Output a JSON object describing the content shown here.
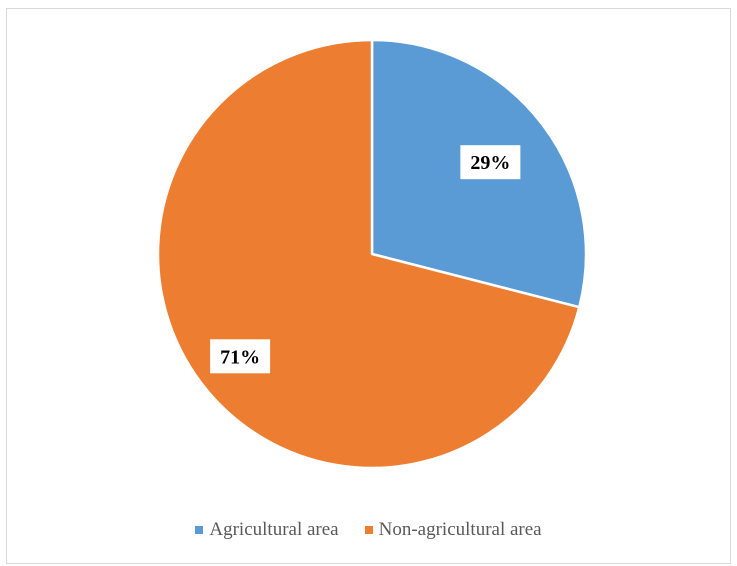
{
  "chart_data": {
    "type": "pie",
    "title": "",
    "categories": [
      "Agricultural area",
      "Non-agricultural area"
    ],
    "values": [
      29,
      71
    ],
    "data_labels": [
      "29%",
      "71%"
    ],
    "colors": [
      "#5b9bd5",
      "#ed7d31"
    ],
    "start_angle_deg": 0,
    "direction": "clockwise",
    "legend_position": "bottom"
  }
}
